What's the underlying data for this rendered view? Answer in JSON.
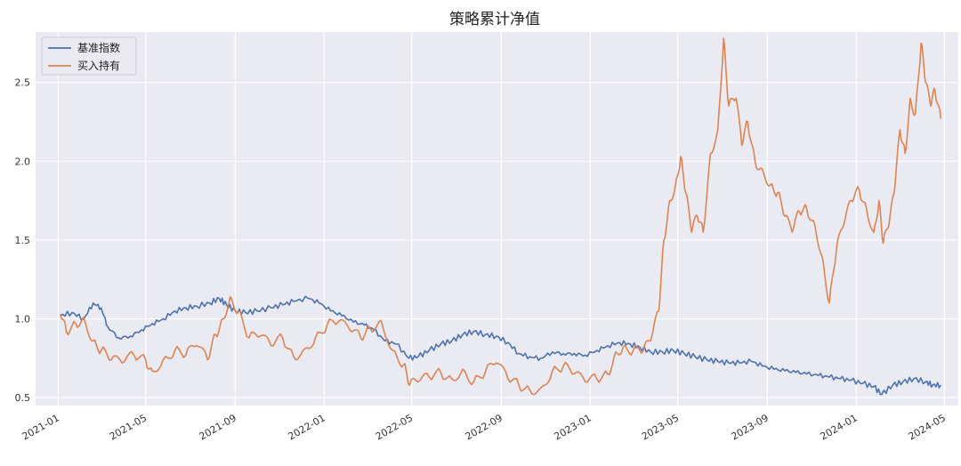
{
  "chart_data": {
    "type": "line",
    "title": "策略累计净值",
    "xlabel": "",
    "ylabel": "",
    "x_ticks": [
      "2021-01",
      "2021-05",
      "2021-09",
      "2022-01",
      "2022-05",
      "2022-09",
      "2023-01",
      "2023-05",
      "2023-09",
      "2024-01",
      "2024-05"
    ],
    "y_ticks": [
      "0.5",
      "1.0",
      "1.5",
      "2.0",
      "2.5"
    ],
    "ylim": [
      0.45,
      2.82
    ],
    "xlim": [
      "2020-12-01",
      "2024-05-20"
    ],
    "grid": true,
    "legend_position": "top-left",
    "background": "#eaeaf2",
    "series": [
      {
        "name": "基准指数",
        "color": "#4c72b0",
        "points": [
          [
            "2021-01-04",
            1.02
          ],
          [
            "2021-01-20",
            1.04
          ],
          [
            "2021-02-05",
            1.0
          ],
          [
            "2021-02-18",
            1.1
          ],
          [
            "2021-03-01",
            1.07
          ],
          [
            "2021-03-10",
            0.95
          ],
          [
            "2021-03-25",
            0.88
          ],
          [
            "2021-04-10",
            0.89
          ],
          [
            "2021-04-25",
            0.93
          ],
          [
            "2021-05-10",
            0.97
          ],
          [
            "2021-05-25",
            1.0
          ],
          [
            "2021-06-10",
            1.05
          ],
          [
            "2021-06-25",
            1.07
          ],
          [
            "2021-07-10",
            1.08
          ],
          [
            "2021-07-28",
            1.1
          ],
          [
            "2021-08-10",
            1.13
          ],
          [
            "2021-08-20",
            1.09
          ],
          [
            "2021-09-01",
            1.05
          ],
          [
            "2021-09-15",
            1.04
          ],
          [
            "2021-10-01",
            1.05
          ],
          [
            "2021-10-20",
            1.07
          ],
          [
            "2021-11-05",
            1.09
          ],
          [
            "2021-11-20",
            1.11
          ],
          [
            "2021-12-10",
            1.13
          ],
          [
            "2021-12-25",
            1.1
          ],
          [
            "2022-01-10",
            1.05
          ],
          [
            "2022-01-25",
            1.02
          ],
          [
            "2022-02-10",
            0.98
          ],
          [
            "2022-02-25",
            0.96
          ],
          [
            "2022-03-10",
            0.93
          ],
          [
            "2022-03-25",
            0.86
          ],
          [
            "2022-04-10",
            0.84
          ],
          [
            "2022-04-27",
            0.75
          ],
          [
            "2022-05-10",
            0.76
          ],
          [
            "2022-05-25",
            0.8
          ],
          [
            "2022-06-10",
            0.84
          ],
          [
            "2022-06-25",
            0.86
          ],
          [
            "2022-07-10",
            0.9
          ],
          [
            "2022-07-25",
            0.92
          ],
          [
            "2022-08-10",
            0.9
          ],
          [
            "2022-08-25",
            0.89
          ],
          [
            "2022-09-10",
            0.85
          ],
          [
            "2022-09-25",
            0.78
          ],
          [
            "2022-10-10",
            0.76
          ],
          [
            "2022-10-25",
            0.75
          ],
          [
            "2022-11-10",
            0.79
          ],
          [
            "2022-11-25",
            0.78
          ],
          [
            "2022-12-10",
            0.78
          ],
          [
            "2022-12-25",
            0.77
          ],
          [
            "2023-01-10",
            0.8
          ],
          [
            "2023-01-25",
            0.83
          ],
          [
            "2023-02-10",
            0.85
          ],
          [
            "2023-02-25",
            0.84
          ],
          [
            "2023-03-10",
            0.82
          ],
          [
            "2023-03-25",
            0.79
          ],
          [
            "2023-04-10",
            0.79
          ],
          [
            "2023-04-25",
            0.8
          ],
          [
            "2023-05-10",
            0.78
          ],
          [
            "2023-05-25",
            0.76
          ],
          [
            "2023-06-10",
            0.74
          ],
          [
            "2023-06-25",
            0.73
          ],
          [
            "2023-07-10",
            0.72
          ],
          [
            "2023-07-25",
            0.72
          ],
          [
            "2023-08-10",
            0.73
          ],
          [
            "2023-08-25",
            0.7
          ],
          [
            "2023-09-10",
            0.68
          ],
          [
            "2023-09-25",
            0.67
          ],
          [
            "2023-10-10",
            0.66
          ],
          [
            "2023-10-25",
            0.65
          ],
          [
            "2023-11-10",
            0.64
          ],
          [
            "2023-11-25",
            0.63
          ],
          [
            "2023-12-10",
            0.62
          ],
          [
            "2023-12-25",
            0.61
          ],
          [
            "2024-01-10",
            0.59
          ],
          [
            "2024-01-25",
            0.57
          ],
          [
            "2024-02-05",
            0.52
          ],
          [
            "2024-02-20",
            0.58
          ],
          [
            "2024-03-05",
            0.6
          ],
          [
            "2024-03-20",
            0.62
          ],
          [
            "2024-04-05",
            0.6
          ],
          [
            "2024-04-15",
            0.58
          ],
          [
            "2024-04-26",
            0.58
          ]
        ]
      },
      {
        "name": "买入持有",
        "color": "#dd8452",
        "points": [
          [
            "2021-01-04",
            1.03
          ],
          [
            "2021-01-12",
            0.92
          ],
          [
            "2021-01-25",
            0.97
          ],
          [
            "2021-02-05",
            1.01
          ],
          [
            "2021-02-18",
            0.86
          ],
          [
            "2021-03-01",
            0.8
          ],
          [
            "2021-03-15",
            0.74
          ],
          [
            "2021-03-30",
            0.72
          ],
          [
            "2021-04-15",
            0.77
          ],
          [
            "2021-05-01",
            0.74
          ],
          [
            "2021-05-10",
            0.67
          ],
          [
            "2021-05-25",
            0.74
          ],
          [
            "2021-06-10",
            0.8
          ],
          [
            "2021-06-25",
            0.77
          ],
          [
            "2021-07-10",
            0.83
          ],
          [
            "2021-07-25",
            0.74
          ],
          [
            "2021-08-05",
            0.9
          ],
          [
            "2021-08-15",
            1.0
          ],
          [
            "2021-08-25",
            1.14
          ],
          [
            "2021-09-05",
            1.05
          ],
          [
            "2021-09-20",
            0.88
          ],
          [
            "2021-10-05",
            0.89
          ],
          [
            "2021-10-20",
            0.83
          ],
          [
            "2021-11-05",
            0.88
          ],
          [
            "2021-11-20",
            0.76
          ],
          [
            "2021-12-05",
            0.81
          ],
          [
            "2021-12-20",
            0.88
          ],
          [
            "2022-01-05",
            0.96
          ],
          [
            "2022-01-20",
            0.98
          ],
          [
            "2022-02-05",
            0.93
          ],
          [
            "2022-02-20",
            0.88
          ],
          [
            "2022-03-05",
            0.94
          ],
          [
            "2022-03-20",
            0.99
          ],
          [
            "2022-04-05",
            0.8
          ],
          [
            "2022-04-20",
            0.71
          ],
          [
            "2022-04-28",
            0.58
          ],
          [
            "2022-05-10",
            0.6
          ],
          [
            "2022-05-25",
            0.63
          ],
          [
            "2022-06-10",
            0.66
          ],
          [
            "2022-06-25",
            0.62
          ],
          [
            "2022-07-10",
            0.68
          ],
          [
            "2022-07-25",
            0.6
          ],
          [
            "2022-08-10",
            0.66
          ],
          [
            "2022-08-25",
            0.72
          ],
          [
            "2022-09-10",
            0.62
          ],
          [
            "2022-09-25",
            0.58
          ],
          [
            "2022-10-10",
            0.55
          ],
          [
            "2022-10-25",
            0.56
          ],
          [
            "2022-11-10",
            0.67
          ],
          [
            "2022-11-25",
            0.7
          ],
          [
            "2022-12-10",
            0.65
          ],
          [
            "2022-12-25",
            0.6
          ],
          [
            "2023-01-10",
            0.62
          ],
          [
            "2023-01-25",
            0.65
          ],
          [
            "2023-02-05",
            0.79
          ],
          [
            "2023-02-15",
            0.82
          ],
          [
            "2023-03-01",
            0.8
          ],
          [
            "2023-03-15",
            0.8
          ],
          [
            "2023-03-25",
            0.86
          ],
          [
            "2023-04-05",
            1.05
          ],
          [
            "2023-04-12",
            1.5
          ],
          [
            "2023-04-20",
            1.75
          ],
          [
            "2023-04-28",
            1.85
          ],
          [
            "2023-05-05",
            2.03
          ],
          [
            "2023-05-12",
            1.8
          ],
          [
            "2023-05-20",
            1.55
          ],
          [
            "2023-05-28",
            1.65
          ],
          [
            "2023-06-05",
            1.55
          ],
          [
            "2023-06-15",
            2.05
          ],
          [
            "2023-06-25",
            2.2
          ],
          [
            "2023-07-03",
            2.78
          ],
          [
            "2023-07-10",
            2.35
          ],
          [
            "2023-07-20",
            2.4
          ],
          [
            "2023-07-28",
            2.1
          ],
          [
            "2023-08-05",
            2.25
          ],
          [
            "2023-08-15",
            2.0
          ],
          [
            "2023-08-25",
            1.95
          ],
          [
            "2023-09-05",
            1.85
          ],
          [
            "2023-09-15",
            1.8
          ],
          [
            "2023-09-25",
            1.65
          ],
          [
            "2023-10-05",
            1.55
          ],
          [
            "2023-10-15",
            1.68
          ],
          [
            "2023-10-25",
            1.7
          ],
          [
            "2023-11-05",
            1.6
          ],
          [
            "2023-11-15",
            1.4
          ],
          [
            "2023-11-25",
            1.1
          ],
          [
            "2023-12-05",
            1.45
          ],
          [
            "2023-12-15",
            1.6
          ],
          [
            "2023-12-25",
            1.75
          ],
          [
            "2024-01-05",
            1.82
          ],
          [
            "2024-01-15",
            1.7
          ],
          [
            "2024-01-25",
            1.55
          ],
          [
            "2024-02-01",
            1.75
          ],
          [
            "2024-02-07",
            1.48
          ],
          [
            "2024-02-15",
            1.6
          ],
          [
            "2024-02-22",
            1.8
          ],
          [
            "2024-03-01",
            2.2
          ],
          [
            "2024-03-08",
            2.05
          ],
          [
            "2024-03-15",
            2.4
          ],
          [
            "2024-03-22",
            2.3
          ],
          [
            "2024-03-30",
            2.75
          ],
          [
            "2024-04-05",
            2.5
          ],
          [
            "2024-04-12",
            2.35
          ],
          [
            "2024-04-18",
            2.45
          ],
          [
            "2024-04-26",
            2.27
          ]
        ]
      }
    ]
  }
}
